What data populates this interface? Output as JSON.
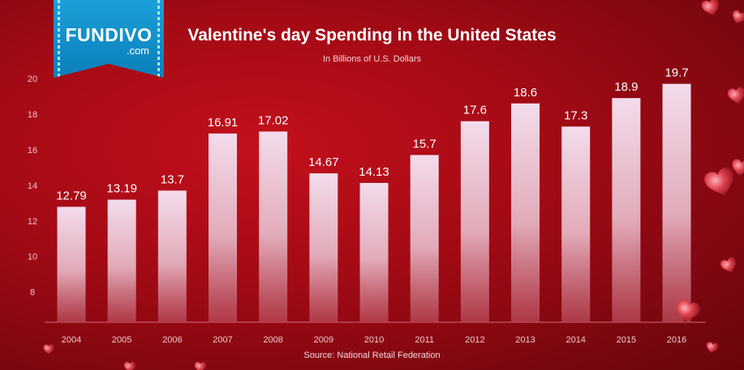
{
  "logo": {
    "name": "FUNDIVO",
    "sub": ".com"
  },
  "colors": {
    "bar_top": "#f3dcec",
    "bar_bottom": "#b5414f",
    "label": "#ffffff",
    "tick": "#f0c6cc",
    "heart": "#e04350",
    "ribbon": "#1592cc"
  },
  "chart_data": {
    "type": "bar",
    "title": "Valentine's day Spending in the United States",
    "subtitle": "In Billions of U.S. Dollars",
    "source": "Source: National Retail Federation",
    "xlabel": "",
    "ylabel": "",
    "categories": [
      "2004",
      "2005",
      "2006",
      "2007",
      "2008",
      "2009",
      "2010",
      "2011",
      "2012",
      "2013",
      "2014",
      "2015",
      "2016"
    ],
    "values": [
      12.79,
      13.19,
      13.7,
      16.91,
      17.02,
      14.67,
      14.13,
      15.7,
      17.6,
      18.6,
      17.3,
      18.9,
      19.7
    ],
    "value_labels": [
      "12.79",
      "13.19",
      "13.7",
      "16.91",
      "17.02",
      "14.67",
      "14.13",
      "15.7",
      "17.6",
      "18.6",
      "17.3",
      "18.9",
      "19.7"
    ],
    "y_ticks": [
      8,
      10,
      12,
      14,
      16,
      18,
      20
    ],
    "ylim": [
      6.3,
      20
    ],
    "grid": false,
    "legend": "none"
  }
}
